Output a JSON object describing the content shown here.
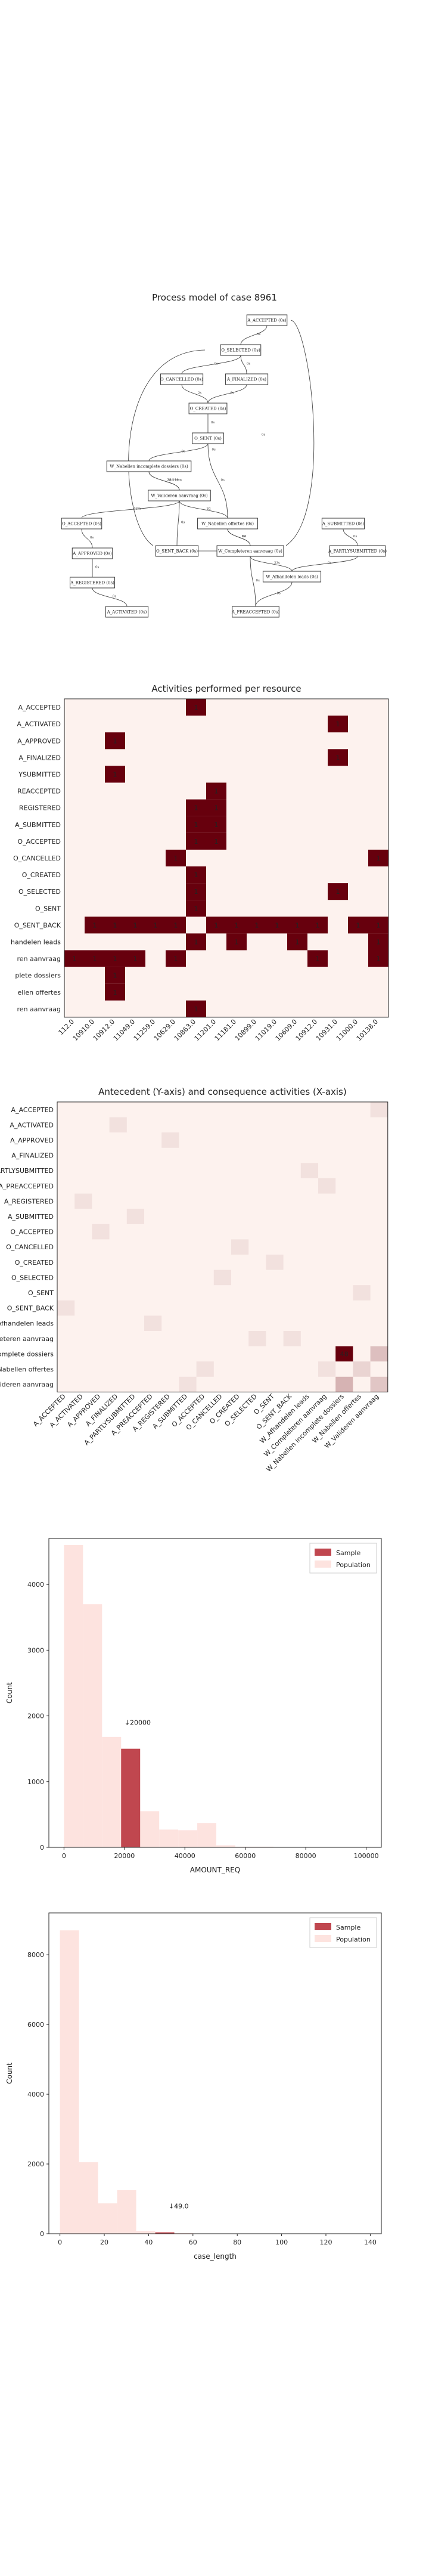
{
  "process_model": {
    "title": "Process model of case 8961",
    "nodes": [
      {
        "id": "n1",
        "label": "A_ACCEPTED (0s)"
      },
      {
        "id": "n2",
        "label": "O_SELECTED (0s)"
      },
      {
        "id": "n3",
        "label": "O_CANCELLED (0s)"
      },
      {
        "id": "n4",
        "label": "A_FINALIZED (0s)"
      },
      {
        "id": "n5",
        "label": "O_CREATED (0s)"
      },
      {
        "id": "n6",
        "label": "O_SENT (0s)"
      },
      {
        "id": "n7",
        "label": "W_Nabellen incomplete dossiers (0s)"
      },
      {
        "id": "n8",
        "label": "W_Valideren aanvraag (0s)"
      },
      {
        "id": "n9",
        "label": "O_ACCEPTED (0s)"
      },
      {
        "id": "n10",
        "label": "A_APPROVED (0s)"
      },
      {
        "id": "n11",
        "label": "A_REGISTERED (0s)"
      },
      {
        "id": "n12",
        "label": "A_ACTIVATED (0s)"
      },
      {
        "id": "n13",
        "label": "O_SENT_BACK (0s)"
      },
      {
        "id": "n14",
        "label": "W_Nabellen offertes (0s)"
      },
      {
        "id": "n15",
        "label": "W_Completeren aanvraag (0s)"
      },
      {
        "id": "n16",
        "label": "A_SUBMITTED (0s)"
      },
      {
        "id": "n17",
        "label": "A_PARTLYSUBMITTED (0s)"
      },
      {
        "id": "n18",
        "label": "W_Afhandelen leads (0s)"
      },
      {
        "id": "n19",
        "label": "A_PREACCEPTED (0s)"
      }
    ],
    "edges": [
      {
        "from": "n1",
        "to": "n2",
        "label": "0s"
      },
      {
        "from": "n2",
        "to": "n3",
        "label": "0s"
      },
      {
        "from": "n2",
        "to": "n4",
        "label": "0s"
      },
      {
        "from": "n3",
        "to": "n5",
        "label": "2s"
      },
      {
        "from": "n4",
        "to": "n5",
        "label": "0s"
      },
      {
        "from": "n5",
        "to": "n6",
        "label": "0s"
      },
      {
        "from": "n6",
        "to": "n7",
        "label": "0s"
      },
      {
        "from": "n6",
        "to": "n14",
        "label": "0s"
      },
      {
        "from": "n7",
        "to": "n8",
        "label": "23d 19m"
      },
      {
        "from": "n8",
        "to": "n7",
        "label": "3d 19m"
      },
      {
        "from": "n8",
        "to": "n9",
        "label": "42m"
      },
      {
        "from": "n8",
        "to": "n13",
        "label": "0s"
      },
      {
        "from": "n8",
        "to": "n14",
        "label": "2d"
      },
      {
        "from": "n9",
        "to": "n10",
        "label": "0s"
      },
      {
        "from": "n10",
        "to": "n11",
        "label": "0s"
      },
      {
        "from": "n11",
        "to": "n12",
        "label": "0s"
      },
      {
        "from": "n13",
        "to": "n15",
        "label": "0s"
      },
      {
        "from": "n14",
        "to": "n15",
        "label": "1d"
      },
      {
        "from": "n15",
        "to": "n14",
        "label": "0s"
      },
      {
        "from": "n16",
        "to": "n17",
        "label": "0s"
      },
      {
        "from": "n17",
        "to": "n18",
        "label": "0s"
      },
      {
        "from": "n18",
        "to": "n15",
        "label": "23s"
      },
      {
        "from": "n18",
        "to": "n19",
        "label": "0s"
      },
      {
        "from": "n19",
        "to": "n15",
        "label": "0s"
      },
      {
        "from": "n15",
        "to": "n1",
        "label": "0s"
      },
      {
        "from": "n13",
        "to": "n2",
        "label": "0s"
      }
    ]
  },
  "chart_data": [
    {
      "type": "heatmap",
      "title": "Activities performed per resource",
      "xlabel": "",
      "ylabel": "",
      "rows": [
        "A_ACCEPTED",
        "A_ACTIVATED",
        "A_APPROVED",
        "A_FINALIZED",
        "A_PARTLYSUBMITTED",
        "A_PREACCEPTED",
        "A_REGISTERED",
        "A_SUBMITTED",
        "O_ACCEPTED",
        "O_CANCELLED",
        "O_CREATED",
        "O_SELECTED",
        "O_SENT",
        "O_SENT_BACK",
        "W_Afhandelen leads",
        "W_Completeren aanvraag",
        "W_Nabellen incomplete dossiers",
        "W_Nabellen offertes",
        "W_Valideren aanvraag"
      ],
      "row_labels": [
        "A_ACCEPTED",
        "A_ACTIVATED",
        "A_APPROVED",
        "A_FINALIZED",
        "YSUBMITTED",
        "REACCEPTED",
        "REGISTERED",
        "A_SUBMITTED",
        "O_ACCEPTED",
        "O_CANCELLED",
        "O_CREATED",
        "O_SELECTED",
        "O_SENT",
        "O_SENT_BACK",
        "handelen leads",
        "ren aanvraag",
        "plete dossiers",
        "ellen offertes",
        "ren aanvraag"
      ],
      "columns": [
        "112.0",
        "10910.0",
        "10912.0",
        "11049.0",
        "11259.0",
        "10629.0",
        "10863.0",
        "11201.0",
        "11181.0",
        "10899.0",
        "11019.0",
        "10609.0",
        "10912.0",
        "10931.0",
        "11000.0",
        "10138.0"
      ],
      "cells": [
        {
          "r": 0,
          "c": 6,
          "v": 1
        },
        {
          "r": 1,
          "c": 13,
          "v": 1
        },
        {
          "r": 2,
          "c": 2,
          "v": 1
        },
        {
          "r": 3,
          "c": 13,
          "v": 1
        },
        {
          "r": 4,
          "c": 2,
          "v": 1
        },
        {
          "r": 5,
          "c": 7,
          "v": 1
        },
        {
          "r": 6,
          "c": 6,
          "v": 1
        },
        {
          "r": 6,
          "c": 7,
          "v": 1
        },
        {
          "r": 7,
          "c": 6,
          "v": 1
        },
        {
          "r": 7,
          "c": 7,
          "v": 1
        },
        {
          "r": 8,
          "c": 6,
          "v": 1
        },
        {
          "r": 8,
          "c": 7,
          "v": 1
        },
        {
          "r": 9,
          "c": 5,
          "v": 1
        },
        {
          "r": 9,
          "c": 15,
          "v": 1
        },
        {
          "r": 10,
          "c": 6,
          "v": 1
        },
        {
          "r": 11,
          "c": 6,
          "v": 1
        },
        {
          "r": 11,
          "c": 13,
          "v": 1
        },
        {
          "r": 12,
          "c": 6,
          "v": 1
        },
        {
          "r": 13,
          "c": 1,
          "v": 1
        },
        {
          "r": 13,
          "c": 2,
          "v": 1
        },
        {
          "r": 13,
          "c": 3,
          "v": 1
        },
        {
          "r": 13,
          "c": 4,
          "v": 1
        },
        {
          "r": 13,
          "c": 5,
          "v": 1
        },
        {
          "r": 13,
          "c": 7,
          "v": 1
        },
        {
          "r": 13,
          "c": 8,
          "v": 1
        },
        {
          "r": 13,
          "c": 9,
          "v": 1
        },
        {
          "r": 13,
          "c": 10,
          "v": 1
        },
        {
          "r": 13,
          "c": 11,
          "v": 1
        },
        {
          "r": 13,
          "c": 12,
          "v": 1
        },
        {
          "r": 13,
          "c": 14,
          "v": 1
        },
        {
          "r": 13,
          "c": 15,
          "v": 1
        },
        {
          "r": 14,
          "c": 6,
          "v": 1
        },
        {
          "r": 14,
          "c": 8,
          "v": 1
        },
        {
          "r": 14,
          "c": 11,
          "v": 1
        },
        {
          "r": 14,
          "c": 15,
          "v": 1
        },
        {
          "r": 15,
          "c": 0,
          "v": 1
        },
        {
          "r": 15,
          "c": 1,
          "v": 1
        },
        {
          "r": 15,
          "c": 2,
          "v": 1
        },
        {
          "r": 15,
          "c": 3,
          "v": 1
        },
        {
          "r": 15,
          "c": 5,
          "v": 1
        },
        {
          "r": 15,
          "c": 12,
          "v": 1
        },
        {
          "r": 15,
          "c": 15,
          "v": 1
        },
        {
          "r": 16,
          "c": 2,
          "v": 1
        },
        {
          "r": 17,
          "c": 2,
          "v": 1
        },
        {
          "r": 18,
          "c": 6,
          "v": 1
        }
      ],
      "colors": {
        "empty": "#fdf2ee",
        "full": "#67000d"
      }
    },
    {
      "type": "heatmap",
      "title": "Antecedent (Y-axis) and consequence activities (X-axis)",
      "xlabel": "",
      "ylabel": "",
      "rows": [
        "A_ACCEPTED",
        "A_ACTIVATED",
        "A_APPROVED",
        "A_FINALIZED",
        "A_PARTLYSUBMITTED",
        "A_PREACCEPTED",
        "A_REGISTERED",
        "A_SUBMITTED",
        "O_ACCEPTED",
        "O_CANCELLED",
        "O_CREATED",
        "O_SELECTED",
        "O_SENT",
        "O_SENT_BACK",
        "W_Afhandelen leads",
        "W_Completeren aanvraag",
        "W_Nabellen incomplete dossiers",
        "W_Nabellen offertes",
        "W_Valideren aanvraag"
      ],
      "row_labels": [
        "A_ACCEPTED",
        "A_ACTIVATED",
        "A_APPROVED",
        "A_FINALIZED",
        "A_PARTLYSUBMITTED",
        "A_PREACCEPTED",
        "A_REGISTERED",
        "A_SUBMITTED",
        "O_ACCEPTED",
        "O_CANCELLED",
        "O_CREATED",
        "O_SELECTED",
        "O_SENT",
        "O_SENT_BACK",
        "W_Afhandelen leads",
        "W_Completeren aanvraag",
        "W_Nabellen incomplete dossiers",
        "W_Nabellen offertes",
        "W_Valideren aanvraag"
      ],
      "columns": [
        "A_ACCEPTED",
        "A_ACTIVATED",
        "A_APPROVED",
        "A_FINALIZED",
        "A_PARTLYSUBMITTED",
        "A_PREACCEPTED",
        "A_REGISTERED",
        "A_SUBMITTED",
        "O_ACCEPTED",
        "O_CANCELLED",
        "O_CREATED",
        "O_SELECTED",
        "O_SENT",
        "O_SENT_BACK",
        "W_Afhandelen leads",
        "W_Completeren aanvraag",
        "W_Nabellen incomplete dossiers",
        "W_Nabellen offertes",
        "W_Valideren aanvraag"
      ],
      "column_labels": [
        "A_ACCEPTED",
        "A_ACTIVATED",
        "A_APPROVED",
        "A_FINALIZED",
        "A_PARTLYSUBMITTED",
        "A_PREACCEPTED",
        "A_REGISTERED",
        "A_SUBMITTED",
        "O_ACCEPTED",
        "O_CANCELLED",
        "O_CREATED",
        "O_SELECTED",
        "O_SENT",
        "O_SENT_BACK",
        "W_Afhandelen leads",
        "W_Completeren aanvraag",
        "W_Nabellen incomplete dossiers",
        "W_Nabellen offertes",
        "W_Valideren aanvraag"
      ],
      "cells": [
        {
          "r": 16,
          "c": 16,
          "v": 48
        },
        {
          "r": 16,
          "c": 18,
          "v": 6
        },
        {
          "r": 18,
          "c": 16,
          "v": 8
        },
        {
          "r": 18,
          "c": 18,
          "v": 5
        },
        {
          "r": 17,
          "c": 17,
          "v": 3
        },
        {
          "r": 0,
          "c": 18,
          "v": 1
        },
        {
          "r": 2,
          "c": 6,
          "v": 1
        },
        {
          "r": 4,
          "c": 14,
          "v": 1
        },
        {
          "r": 7,
          "c": 4,
          "v": 1
        },
        {
          "r": 6,
          "c": 1,
          "v": 1
        },
        {
          "r": 8,
          "c": 2,
          "v": 1
        },
        {
          "r": 9,
          "c": 10,
          "v": 1
        },
        {
          "r": 10,
          "c": 12,
          "v": 1
        },
        {
          "r": 11,
          "c": 9,
          "v": 1
        },
        {
          "r": 12,
          "c": 17,
          "v": 1
        },
        {
          "r": 13,
          "c": 0,
          "v": 1
        },
        {
          "r": 14,
          "c": 5,
          "v": 1
        },
        {
          "r": 15,
          "c": 13,
          "v": 1
        },
        {
          "r": 15,
          "c": 11,
          "v": 1
        },
        {
          "r": 17,
          "c": 15,
          "v": 1
        },
        {
          "r": 17,
          "c": 8,
          "v": 1
        },
        {
          "r": 18,
          "c": 7,
          "v": 1
        },
        {
          "r": 5,
          "c": 15,
          "v": 1
        },
        {
          "r": 1,
          "c": 3,
          "v": 1
        }
      ],
      "labeled_values": [
        48
      ],
      "vmax": 48,
      "colors": {
        "empty": "#fdf2ee",
        "full": "#67000d"
      }
    },
    {
      "type": "bar",
      "title": "",
      "xlabel": "AMOUNT_REQ",
      "ylabel": "Count",
      "xlim": [
        -5000,
        105000
      ],
      "ylim": [
        0,
        4700
      ],
      "xticks": [
        0,
        20000,
        40000,
        60000,
        80000,
        100000
      ],
      "yticks": [
        0,
        1000,
        2000,
        3000,
        4000
      ],
      "bin_width": 6300,
      "population": [
        {
          "x": 0,
          "value": 4600
        },
        {
          "x": 6300,
          "value": 3700
        },
        {
          "x": 12600,
          "value": 1680
        },
        {
          "x": 18900,
          "value": 1500
        },
        {
          "x": 25200,
          "value": 550
        },
        {
          "x": 31500,
          "value": 270
        },
        {
          "x": 37800,
          "value": 260
        },
        {
          "x": 44100,
          "value": 370
        },
        {
          "x": 50400,
          "value": 30
        },
        {
          "x": 56700,
          "value": 10
        },
        {
          "x": 63000,
          "value": 10
        },
        {
          "x": 69300,
          "value": 5
        }
      ],
      "sample": [
        {
          "x": 18900,
          "value": 1500
        }
      ],
      "annotation": "↓20000",
      "annotation_value": 20000,
      "legend": {
        "position": "upper-right",
        "entries": [
          "Sample",
          "Population"
        ]
      },
      "colors": {
        "sample": "#c0474f",
        "population": "#fde3df"
      }
    },
    {
      "type": "bar",
      "title": "",
      "xlabel": "case_length",
      "ylabel": "Count",
      "xlim": [
        -5,
        145
      ],
      "ylim": [
        0,
        9200
      ],
      "xticks": [
        0,
        20,
        40,
        60,
        80,
        100,
        120,
        140
      ],
      "yticks": [
        0,
        2000,
        4000,
        6000,
        8000
      ],
      "bin_width": 8.6,
      "population": [
        {
          "x": 0,
          "value": 8700
        },
        {
          "x": 8.6,
          "value": 2050
        },
        {
          "x": 17.2,
          "value": 870
        },
        {
          "x": 25.8,
          "value": 1250
        },
        {
          "x": 34.4,
          "value": 80
        },
        {
          "x": 43,
          "value": 40
        },
        {
          "x": 51.6,
          "value": 20
        },
        {
          "x": 60.2,
          "value": 8
        }
      ],
      "sample": [
        {
          "x": 43,
          "value": 40
        }
      ],
      "annotation": "↓49.0",
      "annotation_value": 49,
      "legend": {
        "position": "upper-right",
        "entries": [
          "Sample",
          "Population"
        ]
      },
      "colors": {
        "sample": "#c0474f",
        "population": "#fde3df"
      }
    }
  ]
}
